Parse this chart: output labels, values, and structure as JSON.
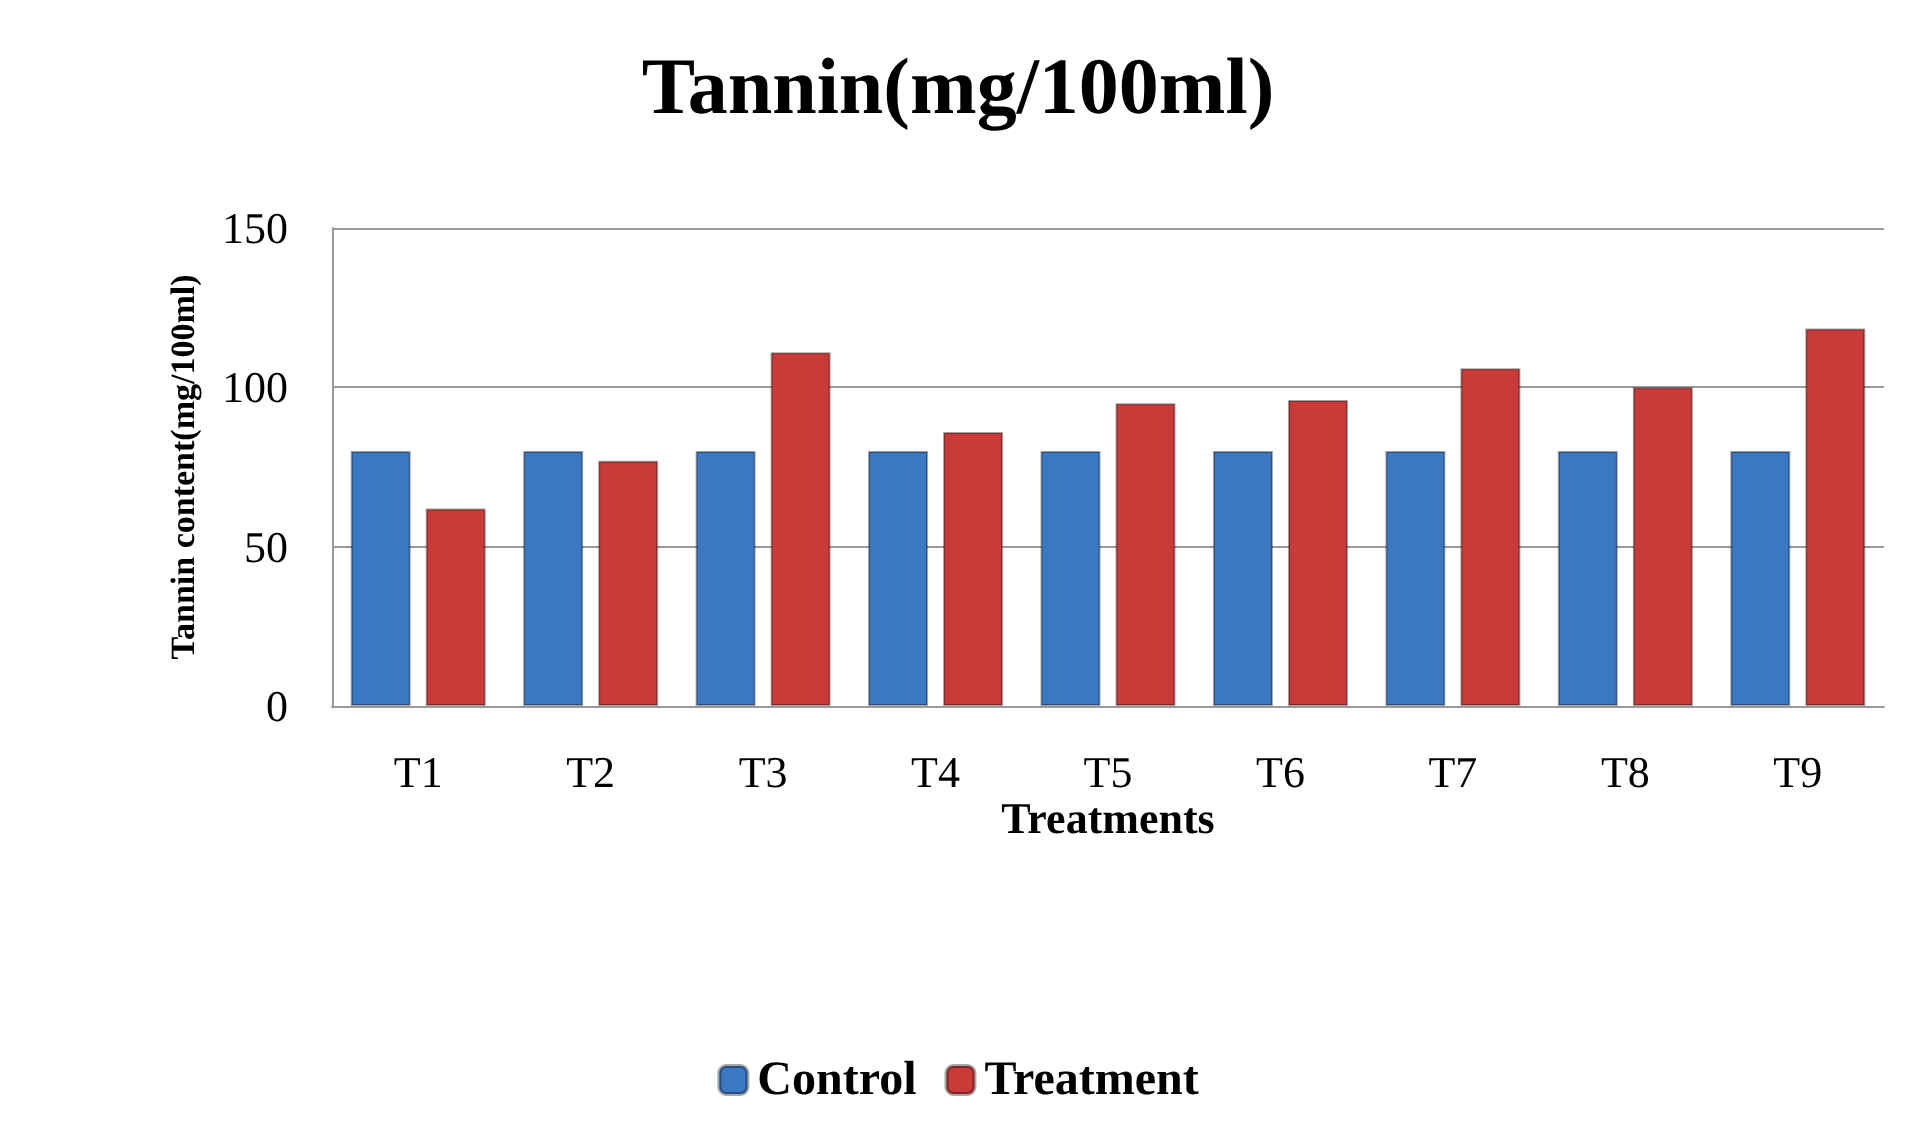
{
  "chart_data": {
    "type": "bar",
    "title": "Tannin(mg/100ml)",
    "xlabel": "Treatments",
    "ylabel": "Tannin content(mg/100ml)",
    "categories": [
      "T1",
      "T2",
      "T3",
      "T4",
      "T5",
      "T6",
      "T7",
      "T8",
      "T9"
    ],
    "series": [
      {
        "name": "Control",
        "color": "#3b78c4",
        "values": [
          80,
          80,
          80,
          80,
          80,
          80,
          80,
          80,
          80
        ]
      },
      {
        "name": "Treatment",
        "color": "#c93a38",
        "values": [
          62,
          77,
          111,
          86,
          95,
          96,
          106,
          100,
          118.5
        ]
      }
    ],
    "ylim": [
      0,
      150
    ],
    "yticks": [
      0,
      50,
      100,
      150
    ],
    "grid": "y",
    "legend": "bottom"
  }
}
